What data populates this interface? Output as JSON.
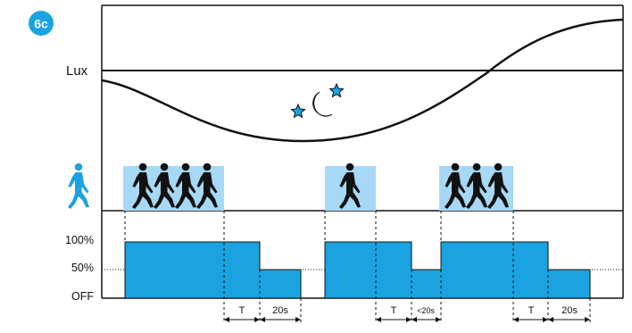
{
  "badge": "6c",
  "lux_label": "Lux",
  "levels": {
    "full": "100%",
    "half": "50%",
    "off": "OFF"
  },
  "timing": {
    "t1": "T",
    "d1": "20s",
    "t2": "T",
    "d2": "<20s",
    "t3": "T",
    "d3": "20s"
  },
  "presence_groups": [
    {
      "walkers": 4
    },
    {
      "walkers": 1
    },
    {
      "walkers": 3
    }
  ],
  "colors": {
    "accent": "#1aa3e0",
    "presence_bg": "#a7d8f5",
    "line": "#111111"
  },
  "icons": [
    "walking-person-icon",
    "moon-icon",
    "star-icon"
  ]
}
